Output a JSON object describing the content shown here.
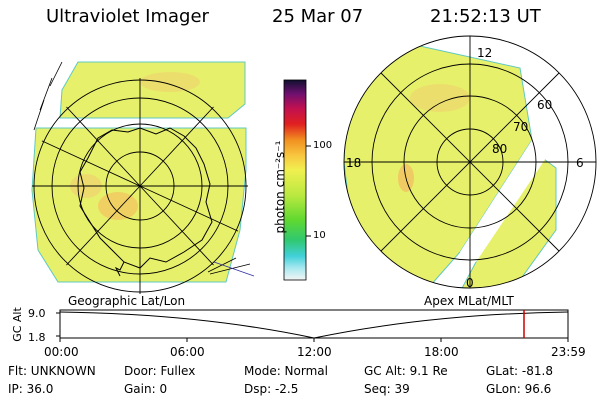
{
  "header": {
    "title": "Ultraviolet Imager",
    "date": "25 Mar 07",
    "time": "21:52:13 UT"
  },
  "colorbar": {
    "unit_label": "photon cm⁻²s⁻¹",
    "tick_labels": [
      "100",
      "10"
    ]
  },
  "left_panel": {
    "caption": "Geographic Lat/Lon"
  },
  "right_panel": {
    "caption": "Apex MLat/MLT",
    "mlt_labels": {
      "top": "12",
      "left": "18",
      "right": "6",
      "bottom": "0"
    },
    "lat_labels": [
      "60",
      "70",
      "80"
    ]
  },
  "timeline": {
    "ylabel": "GC Alt",
    "yticks": [
      "9.0",
      "1.8"
    ],
    "xticks": [
      "00:00",
      "06:00",
      "12:00",
      "18:00",
      "23:59"
    ],
    "current_marker_color": "#cc0000"
  },
  "status": {
    "flt": "Flt: UNKNOWN",
    "door": "Door: Fullex",
    "mode": "Mode: Normal",
    "gc_alt": "GC Alt: 9.1 Re",
    "glat": "GLat: -81.8",
    "ip": "IP: 36.0",
    "gain": "Gain:  0",
    "dsp": "Dsp:    -2.5",
    "seq": "Seq: 39",
    "glon": "GLon:  96.6"
  },
  "colors": {
    "image_fill": "#e6f06a",
    "image_hot": "#f2c860",
    "coast": "#000000"
  }
}
